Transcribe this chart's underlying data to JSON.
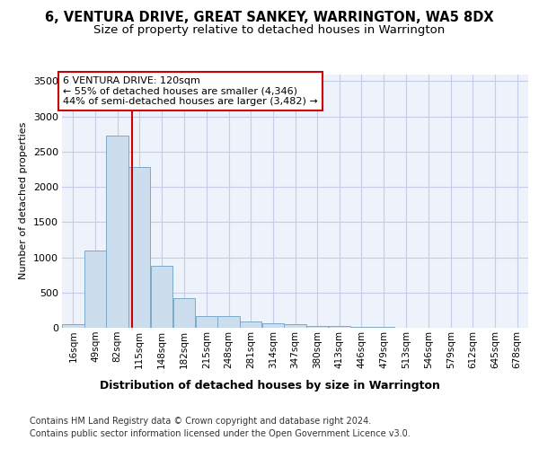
{
  "title": "6, VENTURA DRIVE, GREAT SANKEY, WARRINGTON, WA5 8DX",
  "subtitle": "Size of property relative to detached houses in Warrington",
  "xlabel": "Distribution of detached houses by size in Warrington",
  "ylabel": "Number of detached properties",
  "bar_color": "#ccdded",
  "bar_edge_color": "#7aaac8",
  "background_color": "#eef2fb",
  "grid_color": "#c5cce8",
  "vline_x": 120,
  "vline_color": "#cc0000",
  "annotation_text": "6 VENTURA DRIVE: 120sqm\n← 55% of detached houses are smaller (4,346)\n44% of semi-detached houses are larger (3,482) →",
  "annotation_box_facecolor": "white",
  "annotation_box_edgecolor": "#cc0000",
  "bin_labels": [
    "16sqm",
    "49sqm",
    "82sqm",
    "115sqm",
    "148sqm",
    "182sqm",
    "215sqm",
    "248sqm",
    "281sqm",
    "314sqm",
    "347sqm",
    "380sqm",
    "413sqm",
    "446sqm",
    "479sqm",
    "513sqm",
    "546sqm",
    "579sqm",
    "612sqm",
    "645sqm",
    "678sqm"
  ],
  "bin_starts": [
    16,
    49,
    82,
    115,
    148,
    182,
    215,
    248,
    281,
    314,
    347,
    380,
    413,
    446,
    479,
    513,
    546,
    579,
    612,
    645,
    678
  ],
  "bar_heights": [
    55,
    1100,
    2730,
    2280,
    880,
    420,
    165,
    160,
    90,
    65,
    50,
    30,
    25,
    10,
    10,
    5,
    5,
    2,
    2,
    2,
    2
  ],
  "ylim_max": 3600,
  "yticks": [
    0,
    500,
    1000,
    1500,
    2000,
    2500,
    3000,
    3500
  ],
  "footer_line1": "Contains HM Land Registry data © Crown copyright and database right 2024.",
  "footer_line2": "Contains public sector information licensed under the Open Government Licence v3.0.",
  "title_fontsize": 10.5,
  "subtitle_fontsize": 9.5,
  "ylabel_fontsize": 8,
  "xlabel_fontsize": 9,
  "tick_fontsize": 7.5,
  "ytick_fontsize": 8,
  "footer_fontsize": 7,
  "annot_fontsize": 8
}
